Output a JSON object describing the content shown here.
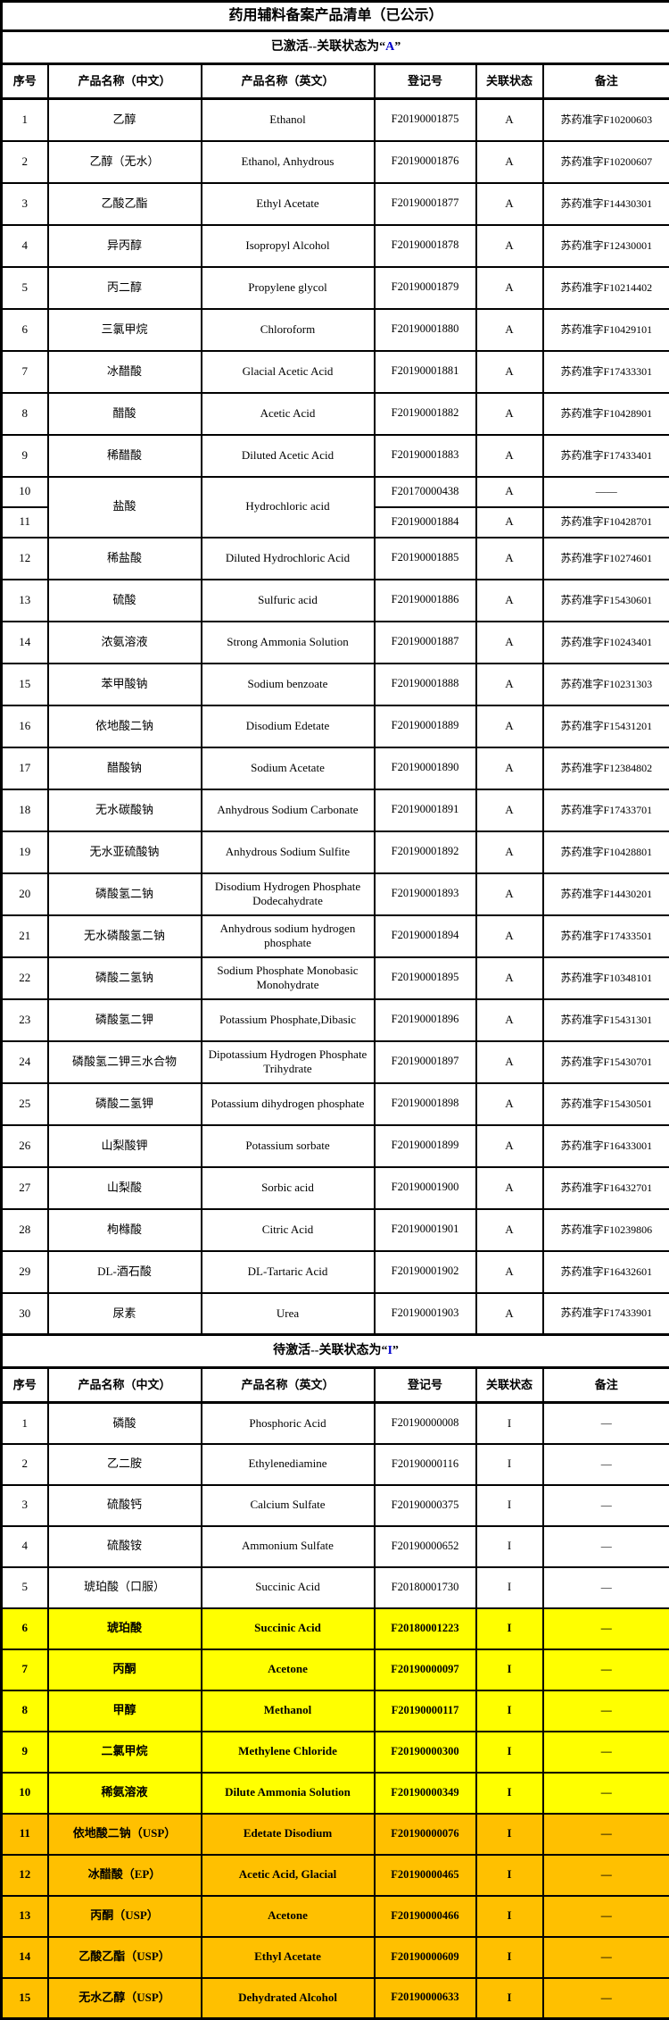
{
  "title": "药用辅料备案产品清单（已公示）",
  "colors": {
    "highlight_yellow": "#FFFF00",
    "highlight_orange": "#FFC000",
    "header_letter_blue": "#0000CC",
    "border_black": "#000000"
  },
  "columns": [
    "序号",
    "产品名称（中文）",
    "产品名称（英文）",
    "登记号",
    "关联状态",
    "备注"
  ],
  "sections": [
    {
      "id": "activated",
      "header": {
        "prefix": "已激活--关联状态为“",
        "letter": "A",
        "suffix": "”"
      },
      "rows": [
        {
          "no": "1",
          "cn": "乙醇",
          "en": "Ethanol",
          "reg": "F20190001875",
          "status": "A",
          "note": "苏药准字F10200603"
        },
        {
          "no": "2",
          "cn": "乙醇（无水）",
          "en": "Ethanol, Anhydrous",
          "reg": "F20190001876",
          "status": "A",
          "note": "苏药准字F10200607"
        },
        {
          "no": "3",
          "cn": "乙酸乙酯",
          "en": "Ethyl Acetate",
          "reg": "F20190001877",
          "status": "A",
          "note": "苏药准字F14430301"
        },
        {
          "no": "4",
          "cn": "异丙醇",
          "en": "Isopropyl Alcohol",
          "reg": "F20190001878",
          "status": "A",
          "note": "苏药准字F12430001"
        },
        {
          "no": "5",
          "cn": "丙二醇",
          "en": "Propylene glycol",
          "reg": "F20190001879",
          "status": "A",
          "note": "苏药准字F10214402"
        },
        {
          "no": "6",
          "cn": "三氯甲烷",
          "en": "Chloroform",
          "reg": "F20190001880",
          "status": "A",
          "note": "苏药准字F10429101"
        },
        {
          "no": "7",
          "cn": "冰醋酸",
          "en": "Glacial Acetic Acid",
          "reg": "F20190001881",
          "status": "A",
          "note": "苏药准字F17433301"
        },
        {
          "no": "8",
          "cn": "醋酸",
          "en": "Acetic Acid",
          "reg": "F20190001882",
          "status": "A",
          "note": "苏药准字F10428901"
        },
        {
          "no": "9",
          "cn": "稀醋酸",
          "en": "Diluted Acetic Acid",
          "reg": "F20190001883",
          "status": "A",
          "note": "苏药准字F17433401"
        },
        {
          "no": "10",
          "cn": "盐酸",
          "en": "Hydrochloric acid",
          "reg": "F20170000438",
          "status": "A",
          "note": "——",
          "merge": "start"
        },
        {
          "no": "11",
          "reg": "F20190001884",
          "status": "A",
          "note": "苏药准字F10428701",
          "merge": "continue"
        },
        {
          "no": "12",
          "cn": "稀盐酸",
          "en": "Diluted Hydrochloric Acid",
          "reg": "F20190001885",
          "status": "A",
          "note": "苏药准字F10274601"
        },
        {
          "no": "13",
          "cn": "硫酸",
          "en": "Sulfuric acid",
          "reg": "F20190001886",
          "status": "A",
          "note": "苏药准字F15430601"
        },
        {
          "no": "14",
          "cn": "浓氨溶液",
          "en": "Strong Ammonia Solution",
          "reg": "F20190001887",
          "status": "A",
          "note": "苏药准字F10243401"
        },
        {
          "no": "15",
          "cn": "苯甲酸钠",
          "en": "Sodium benzoate",
          "reg": "F20190001888",
          "status": "A",
          "note": "苏药准字F10231303"
        },
        {
          "no": "16",
          "cn": "依地酸二钠",
          "en": "Disodium Edetate",
          "reg": "F20190001889",
          "status": "A",
          "note": "苏药准字F15431201"
        },
        {
          "no": "17",
          "cn": "醋酸钠",
          "en": "Sodium Acetate",
          "reg": "F20190001890",
          "status": "A",
          "note": "苏药准字F12384802"
        },
        {
          "no": "18",
          "cn": "无水碳酸钠",
          "en": "Anhydrous Sodium Carbonate",
          "reg": "F20190001891",
          "status": "A",
          "note": "苏药准字F17433701"
        },
        {
          "no": "19",
          "cn": "无水亚硫酸钠",
          "en": "Anhydrous Sodium Sulfite",
          "reg": "F20190001892",
          "status": "A",
          "note": "苏药准字F10428801"
        },
        {
          "no": "20",
          "cn": "磷酸氢二钠",
          "en": "Disodium Hydrogen Phosphate Dodecahydrate",
          "reg": "F20190001893",
          "status": "A",
          "note": "苏药准字F14430201"
        },
        {
          "no": "21",
          "cn": "无水磷酸氢二钠",
          "en": "Anhydrous sodium hydrogen phosphate",
          "reg": "F20190001894",
          "status": "A",
          "note": "苏药准字F17433501"
        },
        {
          "no": "22",
          "cn": "磷酸二氢钠",
          "en": "Sodium Phosphate Monobasic Monohydrate",
          "reg": "F20190001895",
          "status": "A",
          "note": "苏药准字F10348101"
        },
        {
          "no": "23",
          "cn": "磷酸氢二钾",
          "en": "Potassium Phosphate,Dibasic",
          "reg": "F20190001896",
          "status": "A",
          "note": "苏药准字F15431301"
        },
        {
          "no": "24",
          "cn": "磷酸氢二钾三水合物",
          "en": "Dipotassium Hydrogen Phosphate Trihydrate",
          "reg": "F20190001897",
          "status": "A",
          "note": "苏药准字F15430701"
        },
        {
          "no": "25",
          "cn": "磷酸二氢钾",
          "en": "Potassium dihydrogen phosphate",
          "reg": "F20190001898",
          "status": "A",
          "note": "苏药准字F15430501"
        },
        {
          "no": "26",
          "cn": "山梨酸钾",
          "en": "Potassium sorbate",
          "reg": "F20190001899",
          "status": "A",
          "note": "苏药准字F16433001"
        },
        {
          "no": "27",
          "cn": "山梨酸",
          "en": "Sorbic acid",
          "reg": "F20190001900",
          "status": "A",
          "note": "苏药准字F16432701"
        },
        {
          "no": "28",
          "cn": "枸橼酸",
          "en": "Citric Acid",
          "reg": "F20190001901",
          "status": "A",
          "note": "苏药准字F10239806"
        },
        {
          "no": "29",
          "cn": "DL-酒石酸",
          "en": "DL-Tartaric Acid",
          "reg": "F20190001902",
          "status": "A",
          "note": "苏药准字F16432601"
        },
        {
          "no": "30",
          "cn": "尿素",
          "en": "Urea",
          "reg": "F20190001903",
          "status": "A",
          "note": "苏药准字F17433901"
        }
      ]
    },
    {
      "id": "pending",
      "header": {
        "prefix": "待激活--关联状态为“",
        "letter": "I",
        "suffix": "”"
      },
      "rows": [
        {
          "no": "1",
          "cn": "磷酸",
          "en": "Phosphoric Acid",
          "reg": "F20190000008",
          "status": "I",
          "note": "—"
        },
        {
          "no": "2",
          "cn": "乙二胺",
          "en": "Ethylenediamine",
          "reg": "F20190000116",
          "status": "I",
          "note": "—"
        },
        {
          "no": "3",
          "cn": "硫酸钙",
          "en": "Calcium Sulfate",
          "reg": "F20190000375",
          "status": "I",
          "note": "—"
        },
        {
          "no": "4",
          "cn": "硫酸铵",
          "en": "Ammonium Sulfate",
          "reg": "F20190000652",
          "status": "I",
          "note": "—"
        },
        {
          "no": "5",
          "cn": "琥珀酸（口服）",
          "en": "Succinic Acid",
          "reg": "F20180001730",
          "status": "I",
          "note": "—"
        },
        {
          "no": "6",
          "cn": "琥珀酸",
          "en": "Succinic Acid",
          "reg": "F20180001223",
          "status": "I",
          "note": "—",
          "highlight": "yellow"
        },
        {
          "no": "7",
          "cn": "丙酮",
          "en": "Acetone",
          "reg": "F20190000097",
          "status": "I",
          "note": "—",
          "highlight": "yellow"
        },
        {
          "no": "8",
          "cn": "甲醇",
          "en": "Methanol",
          "reg": "F20190000117",
          "status": "I",
          "note": "—",
          "highlight": "yellow"
        },
        {
          "no": "9",
          "cn": "二氯甲烷",
          "en": "Methylene Chloride",
          "reg": "F20190000300",
          "status": "I",
          "note": "—",
          "highlight": "yellow"
        },
        {
          "no": "10",
          "cn": "稀氨溶液",
          "en": "Dilute Ammonia Solution",
          "reg": "F20190000349",
          "status": "I",
          "note": "—",
          "highlight": "yellow"
        },
        {
          "no": "11",
          "cn": "依地酸二钠（USP）",
          "en": "Edetate Disodium",
          "reg": "F20190000076",
          "status": "I",
          "note": "—",
          "highlight": "orange"
        },
        {
          "no": "12",
          "cn": "冰醋酸（EP）",
          "en": "Acetic Acid, Glacial",
          "reg": "F20190000465",
          "status": "I",
          "note": "—",
          "highlight": "orange"
        },
        {
          "no": "13",
          "cn": "丙酮（USP）",
          "en": "Acetone",
          "reg": "F20190000466",
          "status": "I",
          "note": "—",
          "highlight": "orange"
        },
        {
          "no": "14",
          "cn": "乙酸乙酯（USP）",
          "en": "Ethyl Acetate",
          "reg": "F20190000609",
          "status": "I",
          "note": "—",
          "highlight": "orange"
        },
        {
          "no": "15",
          "cn": "无水乙醇（USP）",
          "en": "Dehydrated Alcohol",
          "reg": "F20190000633",
          "status": "I",
          "note": "—",
          "highlight": "orange"
        }
      ]
    }
  ]
}
